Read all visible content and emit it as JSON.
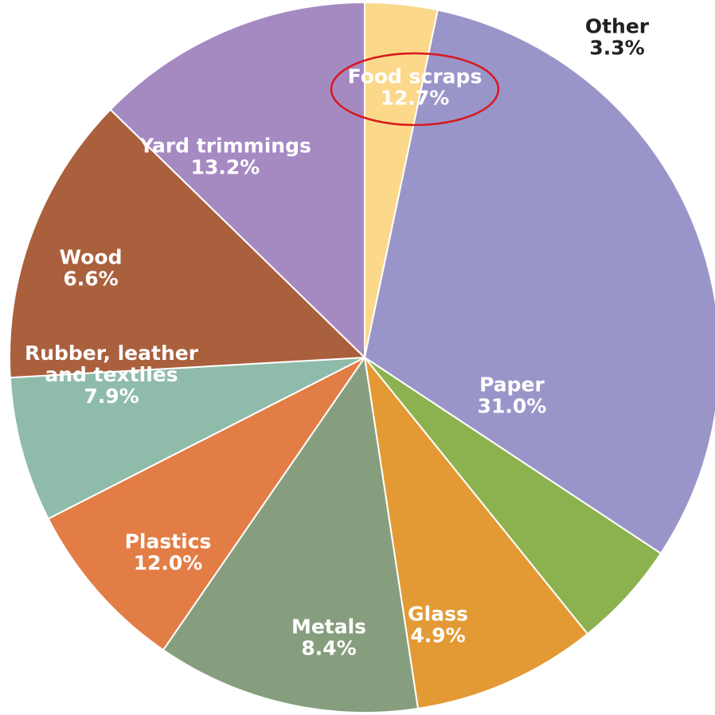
{
  "chart_data": {
    "type": "pie",
    "title": "",
    "start_angle_deg": 0,
    "direction": "clockwise",
    "slices": [
      {
        "label_lines": [
          "Other"
        ],
        "value": 3.3,
        "value_label": "3.3%",
        "color": "#fcd88a",
        "label_color": "#231f20"
      },
      {
        "label_lines": [
          "Paper"
        ],
        "value": 31.0,
        "value_label": "31.0%",
        "color": "#9a95c9",
        "label_color": "#ffffff"
      },
      {
        "label_lines": [
          "Glass"
        ],
        "value": 4.9,
        "value_label": "4.9%",
        "color": "#8cb24f",
        "label_color": "#ffffff"
      },
      {
        "label_lines": [
          "Metals"
        ],
        "value": 8.4,
        "value_label": "8.4%",
        "color": "#e39a35",
        "label_color": "#ffffff"
      },
      {
        "label_lines": [
          "Plastics"
        ],
        "value": 12.0,
        "value_label": "12.0%",
        "color": "#869e7e",
        "label_color": "#ffffff"
      },
      {
        "label_lines": [
          "Rubber, leather",
          "and textiles"
        ],
        "value": 7.9,
        "value_label": "7.9%",
        "color": "#e27d45",
        "label_color": "#ffffff"
      },
      {
        "label_lines": [
          "Wood"
        ],
        "value": 6.6,
        "value_label": "6.6%",
        "color": "#8fbcaa",
        "label_color": "#ffffff"
      },
      {
        "label_lines": [
          "Yard trimmings"
        ],
        "value": 13.2,
        "value_label": "13.2%",
        "color": "#aa5f3d",
        "label_color": "#ffffff"
      },
      {
        "label_lines": [
          "Food scraps"
        ],
        "value": 12.7,
        "value_label": "12.7%",
        "color": "#a58ac2",
        "label_color": "#ffffff",
        "highlighted": true
      }
    ],
    "highlight_color": "#d7191c"
  }
}
